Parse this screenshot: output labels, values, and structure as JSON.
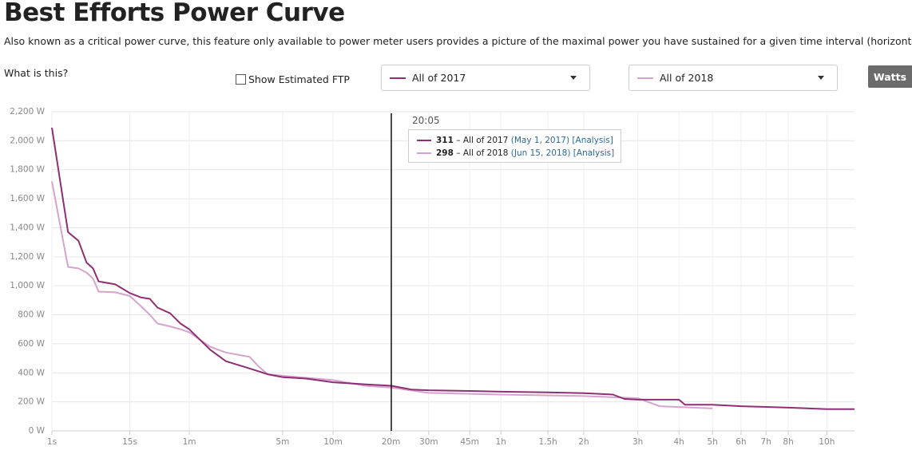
{
  "header": {
    "title": "Best Efforts Power Curve",
    "description": "Also known as a critical power curve, this feature only available to power meter users provides a picture of the maximal power you have sustained for a given time interval (horizontal-axis)."
  },
  "controls": {
    "help": "What is this?",
    "checkbox": "Show Estimated FTP",
    "button": "Watts"
  },
  "chart_data": {
    "type": "line",
    "x_scale": "pow",
    "x_exponent": 0.2,
    "xlim": [
      1,
      42000
    ],
    "xticks": [
      {
        "value": 1,
        "label": "1s"
      },
      {
        "value": 15,
        "label": "15s"
      },
      {
        "value": 60,
        "label": "1m"
      },
      {
        "value": 300,
        "label": "5m"
      },
      {
        "value": 600,
        "label": "10m"
      },
      {
        "value": 1200,
        "label": "20m"
      },
      {
        "value": 1800,
        "label": "30m"
      },
      {
        "value": 2700,
        "label": "45m"
      },
      {
        "value": 3600,
        "label": "1h"
      },
      {
        "value": 5400,
        "label": "1.5h"
      },
      {
        "value": 7200,
        "label": "2h"
      },
      {
        "value": 10800,
        "label": "3h"
      },
      {
        "value": 14400,
        "label": "4h"
      },
      {
        "value": 18000,
        "label": "5h"
      },
      {
        "value": 21600,
        "label": "6h"
      },
      {
        "value": 25200,
        "label": "7h"
      },
      {
        "value": 28800,
        "label": "8h"
      },
      {
        "value": 36000,
        "label": "10h"
      }
    ],
    "ylim": [
      0,
      2200
    ],
    "yticks": [
      {
        "value": 0,
        "label": "0 W"
      },
      {
        "value": 200,
        "label": "200 W"
      },
      {
        "value": 400,
        "label": "400 W"
      },
      {
        "value": 600,
        "label": "600 W"
      },
      {
        "value": 800,
        "label": "800 W"
      },
      {
        "value": 1000,
        "label": "1,000 W"
      },
      {
        "value": 1200,
        "label": "1,200 W"
      },
      {
        "value": 1400,
        "label": "1,400 W"
      },
      {
        "value": 1600,
        "label": "1,600 W"
      },
      {
        "value": 1800,
        "label": "1,800 W"
      },
      {
        "value": 2000,
        "label": "2,000 W"
      },
      {
        "value": 2200,
        "label": "2,200 W"
      }
    ],
    "grid": true,
    "series": [
      {
        "name": "All of 2017",
        "color": "#8e2f74",
        "x": [
          1,
          2,
          3,
          4,
          5,
          6,
          10,
          15,
          20,
          25,
          30,
          40,
          50,
          60,
          90,
          120,
          180,
          240,
          300,
          420,
          600,
          900,
          1205,
          1500,
          1800,
          2700,
          3600,
          5400,
          7200,
          9000,
          9800,
          10800,
          14400,
          15000,
          18000,
          21600,
          25200,
          28800,
          36000,
          42000
        ],
        "values": [
          2090,
          1370,
          1310,
          1160,
          1120,
          1030,
          1010,
          950,
          920,
          910,
          850,
          810,
          740,
          700,
          560,
          480,
          430,
          390,
          370,
          360,
          335,
          320,
          311,
          285,
          280,
          275,
          270,
          265,
          260,
          250,
          220,
          215,
          215,
          180,
          180,
          170,
          165,
          160,
          150,
          150
        ]
      },
      {
        "name": "All of 2018",
        "color": "#d6a3cc",
        "x": [
          1,
          2,
          3,
          4,
          5,
          6,
          10,
          15,
          20,
          25,
          30,
          40,
          50,
          60,
          90,
          120,
          180,
          210,
          240,
          300,
          600,
          900,
          1205,
          1800,
          3600,
          7200,
          10800,
          12600,
          18000
        ],
        "values": [
          1720,
          1130,
          1120,
          1090,
          1050,
          960,
          955,
          930,
          860,
          800,
          740,
          720,
          700,
          680,
          580,
          540,
          510,
          440,
          390,
          380,
          350,
          310,
          298,
          262,
          250,
          240,
          225,
          170,
          155
        ]
      }
    ],
    "tooltip": {
      "x": 1205,
      "time": "20:05",
      "separator": "–",
      "entries": [
        {
          "value": 311,
          "series": "All of 2017",
          "date": "(May 1, 2017)",
          "link": "[Analysis]"
        },
        {
          "value": 298,
          "series": "All of 2018",
          "date": "(Jun 15, 2018)",
          "link": "[Analysis]"
        }
      ]
    }
  }
}
